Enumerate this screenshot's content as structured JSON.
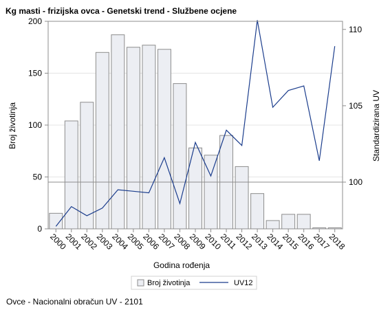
{
  "chart_data": {
    "type": "bar",
    "title": "Kg masti - frizijska ovca - Genetski trend - Službene ocjene",
    "xlabel": "Godina rođenja",
    "ylabel": "Broj životinja",
    "y2label": "Standardizirana UV",
    "categories": [
      "2000",
      "2001",
      "2002",
      "2003",
      "2004",
      "2005",
      "2006",
      "2007",
      "2008",
      "2009",
      "2010",
      "2011",
      "2012",
      "2013",
      "2014",
      "2015",
      "2016",
      "2017",
      "2018"
    ],
    "ylim": [
      0,
      200
    ],
    "yticks": [
      0,
      50,
      100,
      150,
      200
    ],
    "y2lim": [
      96.94,
      110.53
    ],
    "y2ticks": [
      100,
      105,
      110
    ],
    "y2_reference_line": 100,
    "grid": true,
    "legend_position": "bottom",
    "series": [
      {
        "name": "Broj životinja",
        "kind": "bar",
        "axis": "left",
        "values": [
          15,
          104,
          122,
          170,
          187,
          175,
          177,
          173,
          140,
          78,
          71,
          90,
          60,
          34,
          8,
          14,
          14,
          1,
          1
        ]
      },
      {
        "name": "UV12",
        "kind": "line",
        "axis": "right",
        "values": [
          97.1,
          98.4,
          97.8,
          98.3,
          99.5,
          99.4,
          99.3,
          101.6,
          98.6,
          102.6,
          100.4,
          103.4,
          102.4,
          110.6,
          104.9,
          106.0,
          106.3,
          101.4,
          108.9
        ]
      }
    ],
    "colors": {
      "bar_fill": "#eceef3",
      "bar_stroke": "#8c8c8c",
      "line": "#1a3c8c",
      "grid": "#e4e4e4",
      "ref_line": "#8c8c8c"
    }
  },
  "footnote": "Ovce - Nacionalni obračun UV - 2101"
}
